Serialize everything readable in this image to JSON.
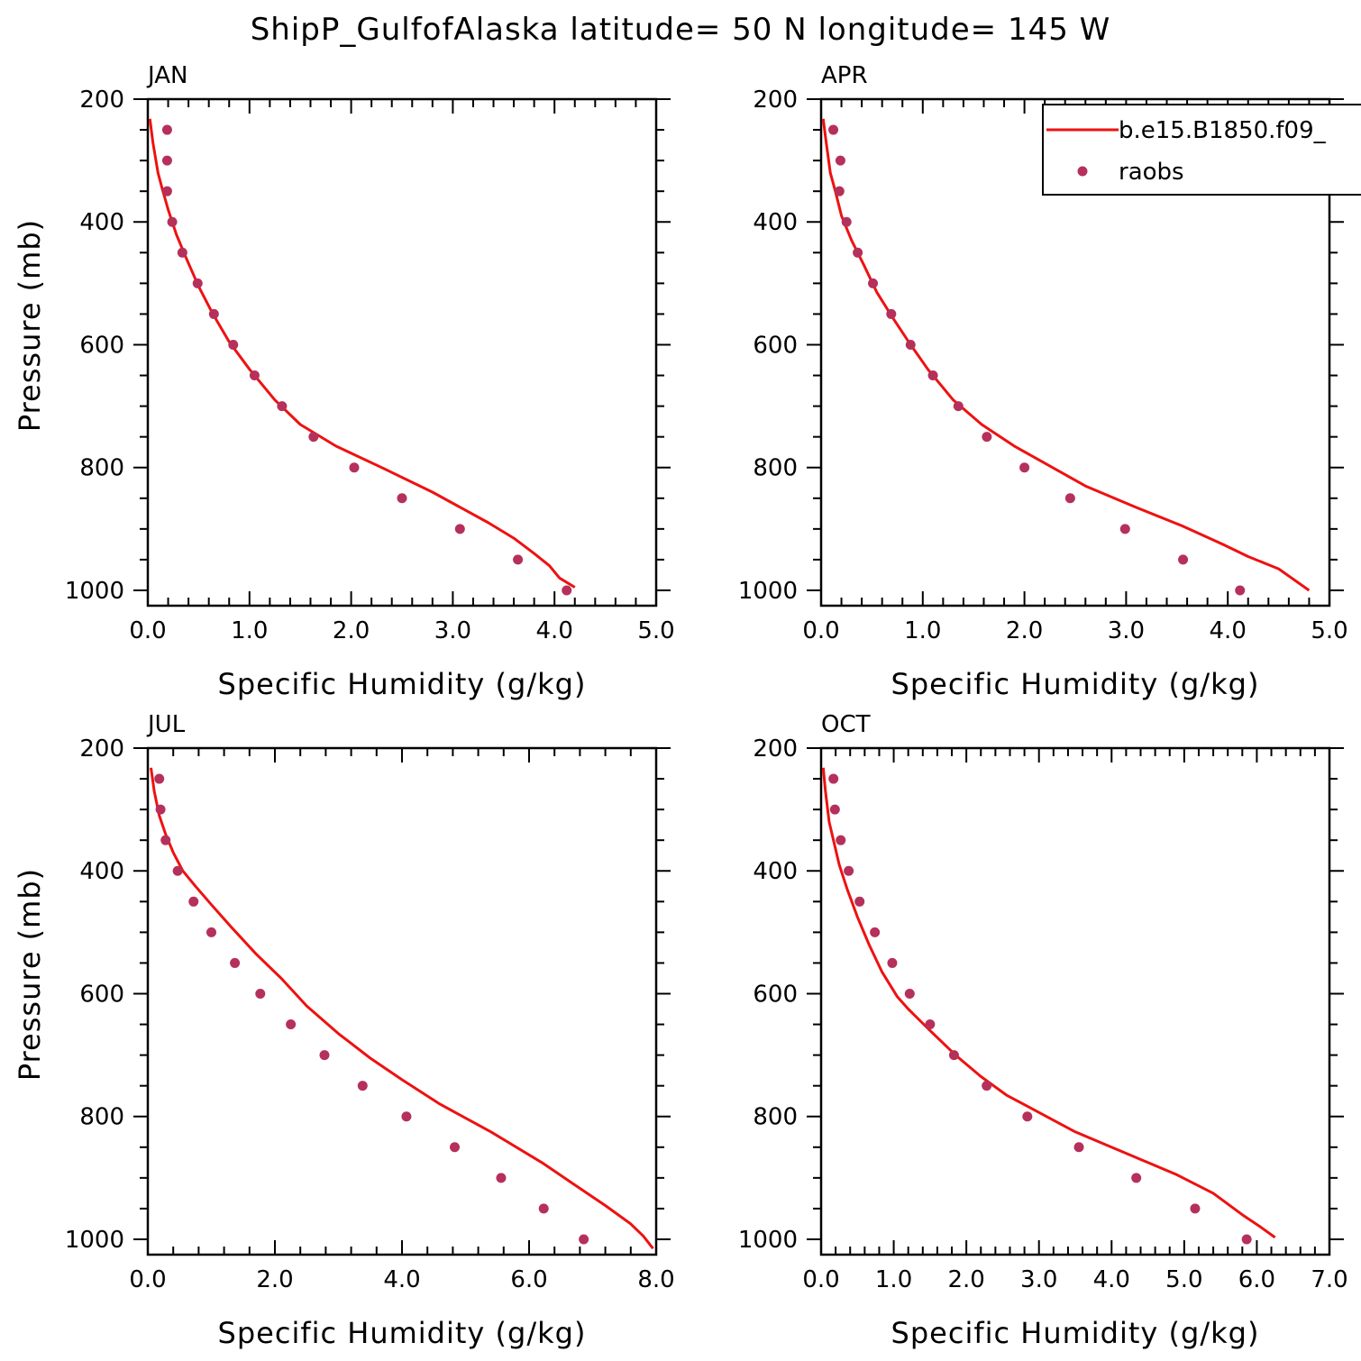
{
  "figure": {
    "title": "ShipP_GulfofAlaska  latitude= 50 N longitude= 145 W"
  },
  "colors": {
    "model_line": "#ee1111",
    "raobs_marker": "#b5305a",
    "axes": "#000000"
  },
  "legend": {
    "placement": "top-right of APR panel, clipped at figure edge",
    "entries": [
      {
        "label": "b.e15.B1850.f09_",
        "style": "line",
        "color": "#ee1111"
      },
      {
        "label": "raobs",
        "style": "marker",
        "color": "#b5305a"
      }
    ]
  },
  "chart_data": [
    {
      "type": "line",
      "panel_label": "JAN",
      "xlabel": "Specific Humidity (g/kg)",
      "ylabel": "Pressure (mb)",
      "xlim": [
        0,
        5
      ],
      "ylim": [
        200,
        1025
      ],
      "y_inverted": true,
      "xticks": [
        0,
        1,
        2,
        3,
        4,
        5
      ],
      "xtick_labels": [
        "0.0",
        "1.0",
        "2.0",
        "3.0",
        "4.0",
        "5.0"
      ],
      "yticks": [
        200,
        400,
        600,
        800,
        1000
      ],
      "ytick_labels": [
        "200",
        "400",
        "600",
        "800",
        "1000"
      ],
      "series": [
        {
          "name": "b.e15.B1850.f09_",
          "style": "line",
          "x": [
            0.02,
            0.05,
            0.1,
            0.14,
            0.2,
            0.28,
            0.38,
            0.5,
            0.64,
            0.8,
            1.0,
            1.25,
            1.5,
            1.85,
            2.3,
            2.8,
            3.35,
            3.6,
            3.8,
            3.95,
            4.05,
            4.2
          ],
          "y": [
            232,
            270,
            320,
            345,
            380,
            420,
            460,
            505,
            550,
            595,
            640,
            690,
            730,
            765,
            800,
            840,
            890,
            915,
            940,
            960,
            980,
            995
          ]
        },
        {
          "name": "raobs",
          "style": "marker",
          "x": [
            0.19,
            0.19,
            0.19,
            0.24,
            0.34,
            0.49,
            0.65,
            0.84,
            1.05,
            1.32,
            1.63,
            2.03,
            2.5,
            3.07,
            3.64,
            4.12
          ],
          "y": [
            250,
            300,
            350,
            400,
            450,
            500,
            550,
            600,
            650,
            700,
            750,
            800,
            850,
            900,
            950,
            1000
          ]
        }
      ]
    },
    {
      "type": "line",
      "panel_label": "APR",
      "xlabel": "Specific Humidity (g/kg)",
      "ylabel": "",
      "xlim": [
        0,
        5
      ],
      "ylim": [
        200,
        1025
      ],
      "y_inverted": true,
      "xticks": [
        0,
        1,
        2,
        3,
        4,
        5
      ],
      "xtick_labels": [
        "0.0",
        "1.0",
        "2.0",
        "3.0",
        "4.0",
        "5.0"
      ],
      "yticks": [
        200,
        400,
        600,
        800,
        1000
      ],
      "ytick_labels": [
        "200",
        "400",
        "600",
        "800",
        "1000"
      ],
      "series": [
        {
          "name": "b.e15.B1850.f09_",
          "style": "line",
          "x": [
            0.02,
            0.05,
            0.09,
            0.14,
            0.2,
            0.3,
            0.42,
            0.55,
            0.7,
            0.86,
            1.05,
            1.3,
            1.58,
            1.9,
            2.6,
            3.1,
            3.55,
            3.95,
            4.2,
            4.5,
            4.8
          ],
          "y": [
            232,
            270,
            320,
            350,
            390,
            430,
            470,
            515,
            555,
            595,
            640,
            690,
            730,
            765,
            830,
            865,
            895,
            925,
            945,
            965,
            1000
          ]
        },
        {
          "name": "raobs",
          "style": "marker",
          "x": [
            0.12,
            0.19,
            0.18,
            0.25,
            0.36,
            0.51,
            0.69,
            0.88,
            1.1,
            1.35,
            1.63,
            2.0,
            2.45,
            2.99,
            3.56,
            4.12
          ],
          "y": [
            250,
            300,
            350,
            400,
            450,
            500,
            550,
            600,
            650,
            700,
            750,
            800,
            850,
            900,
            950,
            1000
          ]
        }
      ]
    },
    {
      "type": "line",
      "panel_label": "JUL",
      "xlabel": "Specific Humidity (g/kg)",
      "ylabel": "Pressure (mb)",
      "xlim": [
        0,
        8
      ],
      "ylim": [
        200,
        1025
      ],
      "y_inverted": true,
      "xticks": [
        0,
        2,
        4,
        6,
        8
      ],
      "xtick_labels": [
        "0.0",
        "2.0",
        "4.0",
        "6.0",
        "8.0"
      ],
      "yticks": [
        200,
        400,
        600,
        800,
        1000
      ],
      "ytick_labels": [
        "200",
        "400",
        "600",
        "800",
        "1000"
      ],
      "series": [
        {
          "name": "b.e15.B1850.f09_",
          "style": "line",
          "x": [
            0.05,
            0.1,
            0.18,
            0.28,
            0.4,
            0.55,
            0.75,
            1.0,
            1.3,
            1.7,
            2.1,
            2.5,
            3.0,
            3.5,
            4.0,
            4.6,
            5.4,
            6.2,
            6.7,
            7.2,
            7.6,
            7.8,
            7.95
          ],
          "y": [
            232,
            270,
            310,
            340,
            370,
            400,
            425,
            455,
            490,
            535,
            575,
            620,
            665,
            705,
            740,
            780,
            825,
            875,
            910,
            945,
            975,
            995,
            1015
          ]
        },
        {
          "name": "raobs",
          "style": "marker",
          "x": [
            0.18,
            0.2,
            0.28,
            0.47,
            0.72,
            1.0,
            1.37,
            1.77,
            2.25,
            2.78,
            3.38,
            4.07,
            4.83,
            5.56,
            6.23,
            6.86
          ],
          "y": [
            250,
            300,
            350,
            400,
            450,
            500,
            550,
            600,
            650,
            700,
            750,
            800,
            850,
            900,
            950,
            1000
          ]
        }
      ]
    },
    {
      "type": "line",
      "panel_label": "OCT",
      "xlabel": "Specific Humidity (g/kg)",
      "ylabel": "",
      "xlim": [
        0,
        7
      ],
      "ylim": [
        200,
        1025
      ],
      "y_inverted": true,
      "xticks": [
        0,
        1,
        2,
        3,
        4,
        5,
        6,
        7
      ],
      "xtick_labels": [
        "0.0",
        "1.0",
        "2.0",
        "3.0",
        "4.0",
        "5.0",
        "6.0",
        "7.0"
      ],
      "yticks": [
        200,
        400,
        600,
        800,
        1000
      ],
      "ytick_labels": [
        "200",
        "400",
        "600",
        "800",
        "1000"
      ],
      "series": [
        {
          "name": "b.e15.B1850.f09_",
          "style": "line",
          "x": [
            0.03,
            0.06,
            0.11,
            0.17,
            0.25,
            0.36,
            0.5,
            0.66,
            0.84,
            1.05,
            1.2,
            1.5,
            1.85,
            2.2,
            2.55,
            3.5,
            4.3,
            4.9,
            5.4,
            5.8,
            6.05,
            6.25
          ],
          "y": [
            232,
            270,
            320,
            350,
            390,
            430,
            475,
            520,
            565,
            605,
            625,
            660,
            700,
            735,
            765,
            825,
            865,
            895,
            925,
            960,
            980,
            997
          ]
        },
        {
          "name": "raobs",
          "style": "marker",
          "x": [
            0.17,
            0.19,
            0.27,
            0.38,
            0.53,
            0.74,
            0.98,
            1.22,
            1.5,
            1.83,
            2.28,
            2.84,
            3.55,
            4.34,
            5.15,
            5.86
          ],
          "y": [
            250,
            300,
            350,
            400,
            450,
            500,
            550,
            600,
            650,
            700,
            750,
            800,
            850,
            900,
            950,
            1000
          ]
        }
      ]
    }
  ]
}
